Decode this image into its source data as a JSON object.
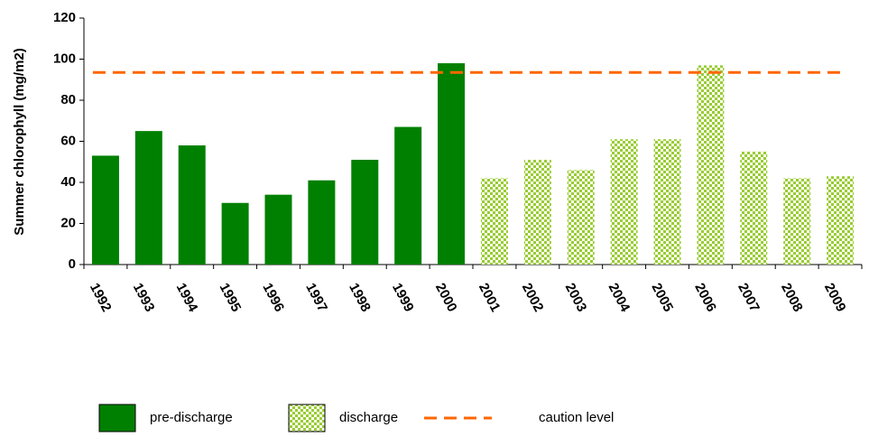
{
  "chart_data": {
    "type": "bar",
    "y_label": "Summer chlorophyll (mg/m2)",
    "categories": [
      "1992",
      "1993",
      "1994",
      "1995",
      "1996",
      "1997",
      "1998",
      "1999",
      "2000",
      "2001",
      "2002",
      "2003",
      "2004",
      "2005",
      "2006",
      "2007",
      "2008",
      "2009"
    ],
    "series": [
      {
        "name": "pre-discharge",
        "color": "#008000",
        "pattern": "solid",
        "values": [
          53,
          65,
          58,
          30,
          34,
          41,
          51,
          67,
          98,
          null,
          null,
          null,
          null,
          null,
          null,
          null,
          null,
          null
        ]
      },
      {
        "name": "discharge",
        "color": "#ccff66",
        "pattern": "checker",
        "values": [
          null,
          null,
          null,
          null,
          null,
          null,
          null,
          null,
          null,
          42,
          51,
          46,
          61,
          61,
          97,
          55,
          42,
          43
        ]
      }
    ],
    "reference_line": {
      "name": "caution level",
      "value": 93.5,
      "color": "#ff6600"
    },
    "ylim": [
      0,
      120
    ],
    "yticks": [
      0,
      20,
      40,
      60,
      80,
      100,
      120
    ],
    "grid": false,
    "legend": "bottom"
  }
}
